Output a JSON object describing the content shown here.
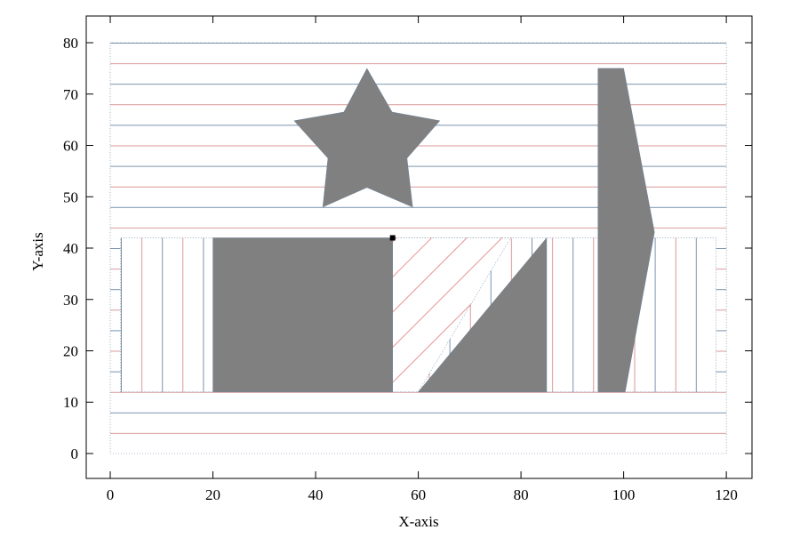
{
  "chart_data": {
    "type": "polygons",
    "xlabel": "X-axis",
    "ylabel": "Y-axis",
    "xlim": [
      -4.68,
      125
    ],
    "ylim": [
      -4.85,
      85.2
    ],
    "xticks": [
      0,
      20,
      40,
      60,
      80,
      100,
      120
    ],
    "yticks": [
      0,
      10,
      20,
      30,
      40,
      50,
      60,
      70,
      80
    ],
    "polygons": [
      {
        "fill": "hlines",
        "x": [
          0,
          120,
          120,
          0
        ],
        "y": [
          0,
          0,
          80,
          80
        ]
      },
      {
        "fill": "vlines",
        "x": [
          2,
          118,
          118,
          2
        ],
        "y": [
          12,
          12,
          42,
          42
        ]
      },
      {
        "fill": "diag",
        "x": [
          55,
          78,
          60,
          55
        ],
        "y": [
          42,
          42,
          12,
          12
        ]
      },
      {
        "fill": "#808080",
        "x": [
          20,
          55,
          55,
          20
        ],
        "y": [
          12,
          12,
          42,
          42
        ]
      },
      {
        "fill": "#808080",
        "x": [
          60,
          85,
          85
        ],
        "y": [
          12,
          12,
          42
        ]
      },
      {
        "fill": "#808080",
        "x": [
          50,
          54.9,
          64.2,
          57.8,
          58.9,
          50,
          41.4,
          42.4,
          35.8,
          45.5
        ],
        "y": [
          75,
          66.5,
          64.8,
          57.5,
          48,
          51.8,
          48,
          57.5,
          64.8,
          66.5
        ]
      },
      {
        "fill": "#808080",
        "x": [
          95,
          100,
          106,
          100.3,
          95
        ],
        "y": [
          75,
          75,
          43.1,
          12,
          12
        ]
      }
    ],
    "points": {
      "x": [
        55
      ],
      "y": [
        42
      ],
      "color": "#000000"
    }
  }
}
